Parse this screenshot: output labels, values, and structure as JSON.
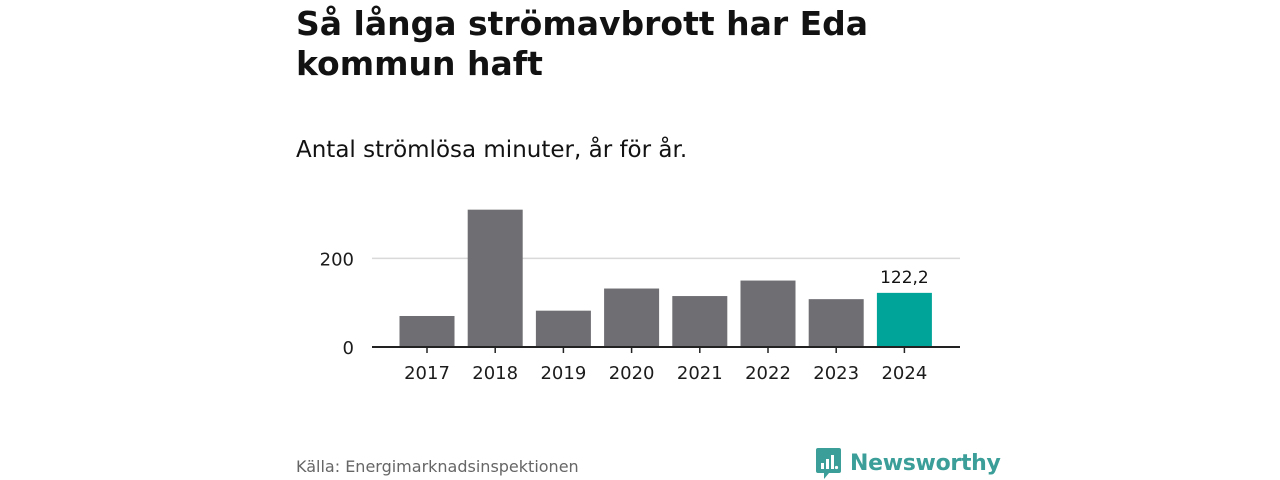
{
  "title": "Så långa strömavbrott har Eda kommun haft",
  "subtitle": "Antal strömlösa minuter, år för år.",
  "source": "Källa: Energimarknadsinspektionen",
  "brand": {
    "name": "Newsworthy",
    "icon": "newsworthy-logo-icon",
    "color": "#3b9e98"
  },
  "colors": {
    "bar": "#6e6e73",
    "highlight": "#00a499",
    "grid": "#d9d9d9",
    "axis": "#222222"
  },
  "chart_data": {
    "type": "bar",
    "categories": [
      "2017",
      "2018",
      "2019",
      "2020",
      "2021",
      "2022",
      "2023",
      "2024"
    ],
    "values": [
      70,
      310,
      82,
      132,
      115,
      150,
      108,
      122.2
    ],
    "highlight_index": 7,
    "data_labels": [
      {
        "index": 7,
        "text": "122,2"
      }
    ],
    "yticks": [
      0,
      200
    ],
    "ylim": [
      0,
      310
    ],
    "grid": true,
    "xlabel": "",
    "ylabel": ""
  }
}
